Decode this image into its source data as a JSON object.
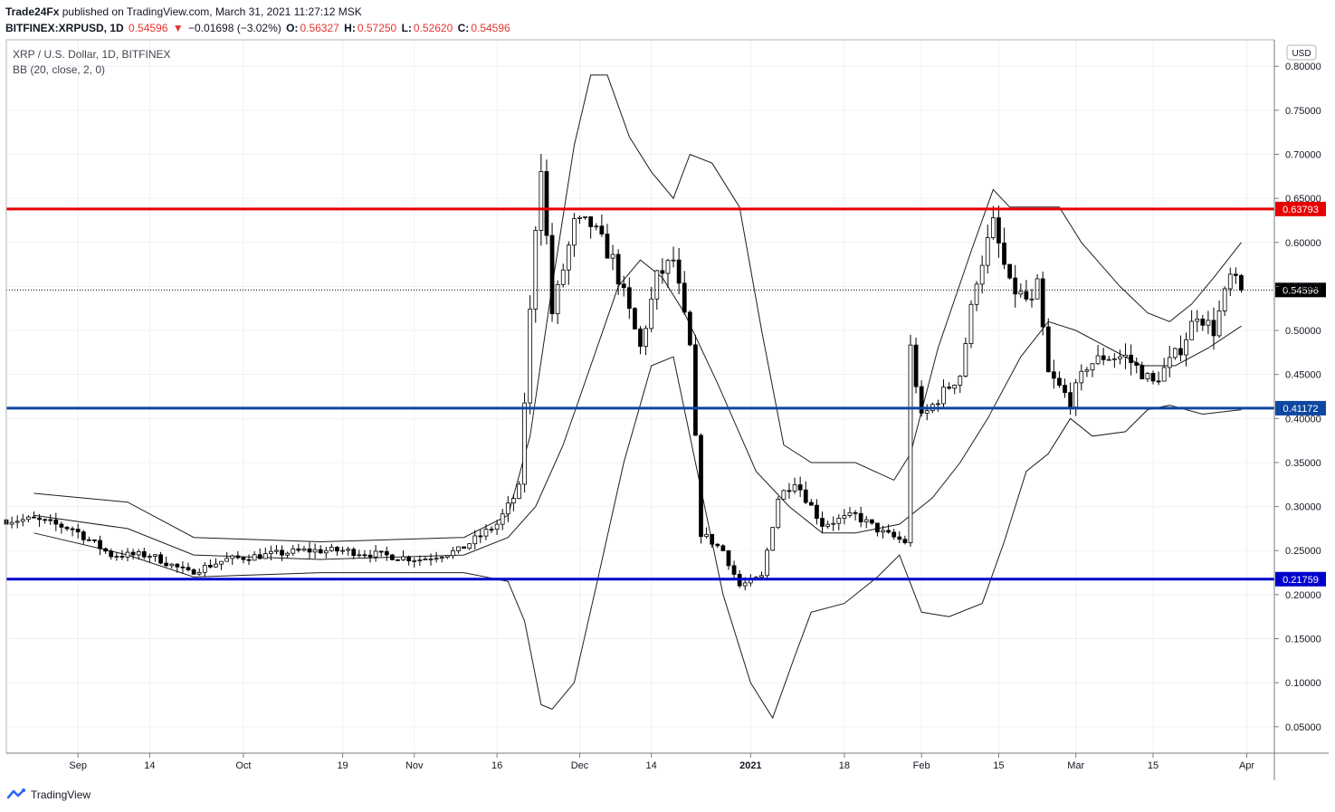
{
  "header": {
    "publisher": "Trade24Fx",
    "published_text": "published on TradingView.com, March 31, 2021 11:27:12 MSK",
    "symbol": "BITFINEX:XRPUSD, 1D",
    "last": "0.54596",
    "change_arrow": "▼",
    "change": "−0.01698 (−3.02%)",
    "o_label": "O:",
    "o": "0.56327",
    "h_label": "H:",
    "h": "0.57250",
    "l_label": "L:",
    "l": "0.52620",
    "c_label": "C:",
    "c": "0.54596"
  },
  "legend": {
    "title": "XRP / U.S. Dollar, 1D, BITFINEX",
    "indicator": "BB (20, close, 2, 0)"
  },
  "footer": {
    "brand": "TradingView"
  },
  "colors": {
    "red_line": "#e60000",
    "blue_line_mid": "#0d47a1",
    "blue_line_low": "#0000cc",
    "price_label_bg": "#000000",
    "grid": "#eef0f3"
  },
  "chart_data": {
    "type": "candlestick",
    "currency_label": "USD",
    "y_range": [
      0.02,
      0.83
    ],
    "y_ticks": [
      0.8,
      0.75,
      0.7,
      0.65,
      0.6,
      0.55,
      0.5,
      0.45,
      0.4,
      0.35,
      0.3,
      0.25,
      0.2,
      0.15,
      0.1,
      0.05
    ],
    "x_ticks": [
      "Sep",
      "14",
      "Oct",
      "19",
      "Nov",
      "16",
      "Dec",
      "14",
      "2021",
      "18",
      "Feb",
      "15",
      "Mar",
      "15",
      "Apr"
    ],
    "horizontal_levels": [
      {
        "value": 0.63793,
        "label": "0.63793",
        "color": "#e60000"
      },
      {
        "value": 0.41172,
        "label": "0.41172",
        "color": "#0d47a1"
      },
      {
        "value": 0.21759,
        "label": "0.21759",
        "color": "#0000cc"
      }
    ],
    "last_price": {
      "value": 0.54596,
      "label": "0.54596"
    },
    "anchors": [
      [
        "2020-08-24",
        0.285
      ],
      [
        "2020-08-31",
        0.275
      ],
      [
        "2020-09-07",
        0.245
      ],
      [
        "2020-09-14",
        0.245
      ],
      [
        "2020-09-21",
        0.225
      ],
      [
        "2020-09-28",
        0.24
      ],
      [
        "2020-10-05",
        0.245
      ],
      [
        "2020-10-12",
        0.25
      ],
      [
        "2020-10-19",
        0.25
      ],
      [
        "2020-10-26",
        0.245
      ],
      [
        "2020-11-02",
        0.24
      ],
      [
        "2020-11-09",
        0.25
      ],
      [
        "2020-11-16",
        0.28
      ],
      [
        "2020-11-20",
        0.32
      ],
      [
        "2020-11-23",
        0.62
      ],
      [
        "2020-11-24",
        0.69
      ],
      [
        "2020-11-26",
        0.52
      ],
      [
        "2020-11-30",
        0.62
      ],
      [
        "2020-12-03",
        0.62
      ],
      [
        "2020-12-07",
        0.58
      ],
      [
        "2020-12-12",
        0.48
      ],
      [
        "2020-12-15",
        0.56
      ],
      [
        "2020-12-18",
        0.58
      ],
      [
        "2020-12-21",
        0.48
      ],
      [
        "2020-12-23",
        0.27
      ],
      [
        "2020-12-27",
        0.25
      ],
      [
        "2020-12-30",
        0.21
      ],
      [
        "2021-01-03",
        0.22
      ],
      [
        "2021-01-06",
        0.31
      ],
      [
        "2021-01-09",
        0.33
      ],
      [
        "2021-01-14",
        0.28
      ],
      [
        "2021-01-20",
        0.29
      ],
      [
        "2021-01-25",
        0.27
      ],
      [
        "2021-01-29",
        0.26
      ],
      [
        "2021-01-30",
        0.48
      ],
      [
        "2021-02-01",
        0.4
      ],
      [
        "2021-02-05",
        0.43
      ],
      [
        "2021-02-08",
        0.45
      ],
      [
        "2021-02-11",
        0.56
      ],
      [
        "2021-02-14",
        0.62
      ],
      [
        "2021-02-17",
        0.55
      ],
      [
        "2021-02-21",
        0.53
      ],
      [
        "2021-02-22",
        0.55
      ],
      [
        "2021-02-24",
        0.45
      ],
      [
        "2021-02-28",
        0.42
      ],
      [
        "2021-03-03",
        0.46
      ],
      [
        "2021-03-06",
        0.47
      ],
      [
        "2021-03-10",
        0.47
      ],
      [
        "2021-03-15",
        0.44
      ],
      [
        "2021-03-20",
        0.48
      ],
      [
        "2021-03-23",
        0.52
      ],
      [
        "2021-03-26",
        0.5
      ],
      [
        "2021-03-29",
        0.56
      ],
      [
        "2021-03-31",
        0.546
      ]
    ],
    "bb_upper": [
      [
        "2020-08-24",
        0.315
      ],
      [
        "2020-09-10",
        0.305
      ],
      [
        "2020-09-22",
        0.265
      ],
      [
        "2020-10-15",
        0.26
      ],
      [
        "2020-11-10",
        0.265
      ],
      [
        "2020-11-18",
        0.29
      ],
      [
        "2020-11-22",
        0.38
      ],
      [
        "2020-11-26",
        0.55
      ],
      [
        "2020-11-30",
        0.71
      ],
      [
        "2020-12-03",
        0.79
      ],
      [
        "2020-12-06",
        0.79
      ],
      [
        "2020-12-10",
        0.72
      ],
      [
        "2020-12-14",
        0.68
      ],
      [
        "2020-12-18",
        0.65
      ],
      [
        "2020-12-21",
        0.7
      ],
      [
        "2020-12-25",
        0.69
      ],
      [
        "2020-12-30",
        0.64
      ],
      [
        "2021-01-03",
        0.5
      ],
      [
        "2021-01-07",
        0.37
      ],
      [
        "2021-01-12",
        0.35
      ],
      [
        "2021-01-20",
        0.35
      ],
      [
        "2021-01-27",
        0.33
      ],
      [
        "2021-01-30",
        0.36
      ],
      [
        "2021-02-04",
        0.48
      ],
      [
        "2021-02-10",
        0.59
      ],
      [
        "2021-02-14",
        0.66
      ],
      [
        "2021-02-17",
        0.64
      ],
      [
        "2021-02-21",
        0.64
      ],
      [
        "2021-02-26",
        0.64
      ],
      [
        "2021-03-02",
        0.6
      ],
      [
        "2021-03-09",
        0.55
      ],
      [
        "2021-03-14",
        0.52
      ],
      [
        "2021-03-18",
        0.51
      ],
      [
        "2021-03-22",
        0.53
      ],
      [
        "2021-03-26",
        0.56
      ],
      [
        "2021-03-31",
        0.6
      ]
    ],
    "bb_middle": [
      [
        "2020-08-24",
        0.29
      ],
      [
        "2020-09-10",
        0.275
      ],
      [
        "2020-09-22",
        0.245
      ],
      [
        "2020-10-15",
        0.24
      ],
      [
        "2020-11-10",
        0.245
      ],
      [
        "2020-11-18",
        0.265
      ],
      [
        "2020-11-23",
        0.3
      ],
      [
        "2020-11-28",
        0.37
      ],
      [
        "2020-12-03",
        0.46
      ],
      [
        "2020-12-08",
        0.55
      ],
      [
        "2020-12-12",
        0.58
      ],
      [
        "2020-12-16",
        0.56
      ],
      [
        "2020-12-20",
        0.52
      ],
      [
        "2020-12-26",
        0.44
      ],
      [
        "2021-01-02",
        0.34
      ],
      [
        "2021-01-08",
        0.3
      ],
      [
        "2021-01-14",
        0.27
      ],
      [
        "2021-01-20",
        0.27
      ],
      [
        "2021-01-28",
        0.28
      ],
      [
        "2021-02-03",
        0.31
      ],
      [
        "2021-02-08",
        0.35
      ],
      [
        "2021-02-13",
        0.4
      ],
      [
        "2021-02-19",
        0.47
      ],
      [
        "2021-02-24",
        0.51
      ],
      [
        "2021-03-01",
        0.5
      ],
      [
        "2021-03-07",
        0.48
      ],
      [
        "2021-03-13",
        0.46
      ],
      [
        "2021-03-19",
        0.46
      ],
      [
        "2021-03-25",
        0.48
      ],
      [
        "2021-03-31",
        0.505
      ]
    ],
    "bb_lower": [
      [
        "2020-08-24",
        0.27
      ],
      [
        "2020-09-10",
        0.245
      ],
      [
        "2020-09-22",
        0.22
      ],
      [
        "2020-10-15",
        0.225
      ],
      [
        "2020-11-10",
        0.225
      ],
      [
        "2020-11-18",
        0.215
      ],
      [
        "2020-11-21",
        0.17
      ],
      [
        "2020-11-24",
        0.075
      ],
      [
        "2020-11-26",
        0.07
      ],
      [
        "2020-11-30",
        0.1
      ],
      [
        "2020-12-04",
        0.21
      ],
      [
        "2020-12-09",
        0.35
      ],
      [
        "2020-12-14",
        0.46
      ],
      [
        "2020-12-18",
        0.47
      ],
      [
        "2020-12-22",
        0.35
      ],
      [
        "2020-12-27",
        0.2
      ],
      [
        "2021-01-01",
        0.1
      ],
      [
        "2021-01-05",
        0.06
      ],
      [
        "2021-01-09",
        0.13
      ],
      [
        "2021-01-12",
        0.18
      ],
      [
        "2021-01-18",
        0.19
      ],
      [
        "2021-01-24",
        0.22
      ],
      [
        "2021-01-28",
        0.245
      ],
      [
        "2021-02-01",
        0.18
      ],
      [
        "2021-02-06",
        0.175
      ],
      [
        "2021-02-12",
        0.19
      ],
      [
        "2021-02-16",
        0.26
      ],
      [
        "2021-02-20",
        0.34
      ],
      [
        "2021-02-24",
        0.36
      ],
      [
        "2021-02-28",
        0.4
      ],
      [
        "2021-03-04",
        0.38
      ],
      [
        "2021-03-10",
        0.385
      ],
      [
        "2021-03-14",
        0.41
      ],
      [
        "2021-03-18",
        0.415
      ],
      [
        "2021-03-24",
        0.405
      ],
      [
        "2021-03-31",
        0.41
      ]
    ]
  }
}
